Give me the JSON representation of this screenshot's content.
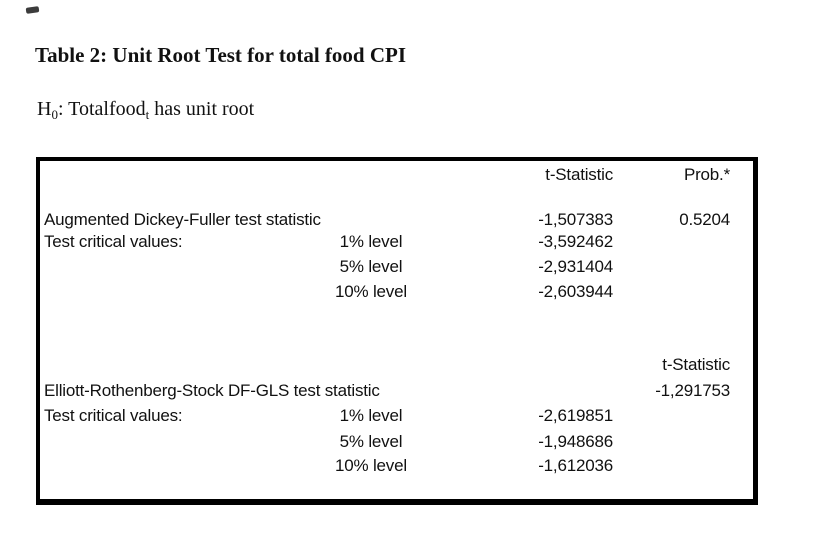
{
  "colors": {
    "background": "#ffffff",
    "text": "#111111",
    "table_border": "#000000"
  },
  "title": "Table 2: Unit Root Test for total food CPI",
  "hypothesis": {
    "h_main": "H",
    "h_sub": "0",
    "mid": ": Totalfood",
    "t_sub": "t",
    "tail": " has unit root"
  },
  "table": {
    "section1": {
      "header": {
        "t_stat": "t-Statistic",
        "prob": "Prob.*"
      },
      "rows": [
        {
          "label": "Augmented Dickey-Fuller test statistic",
          "level": "",
          "t_stat": "-1,507383",
          "prob": "0.5204"
        },
        {
          "label": "Test critical values:",
          "level": "1% level",
          "t_stat": "-3,592462",
          "prob": ""
        },
        {
          "label": "",
          "level": "5% level",
          "t_stat": "-2,931404",
          "prob": ""
        },
        {
          "label": "",
          "level": "10% level",
          "t_stat": "-2,603944",
          "prob": ""
        }
      ]
    },
    "section2": {
      "header": {
        "t_stat": "t-Statistic"
      },
      "rows": [
        {
          "label": "Elliott-Rothenberg-Stock DF-GLS test statistic",
          "level": "",
          "t_stat": "",
          "t_stat_right": "-1,291753"
        },
        {
          "label": "Test critical values:",
          "level": "1% level",
          "t_stat": "-2,619851",
          "t_stat_right": ""
        },
        {
          "label": "",
          "level": "5% level",
          "t_stat": "-1,948686",
          "t_stat_right": ""
        },
        {
          "label": "",
          "level": "10% level",
          "t_stat": "-1,612036",
          "t_stat_right": ""
        }
      ]
    }
  }
}
